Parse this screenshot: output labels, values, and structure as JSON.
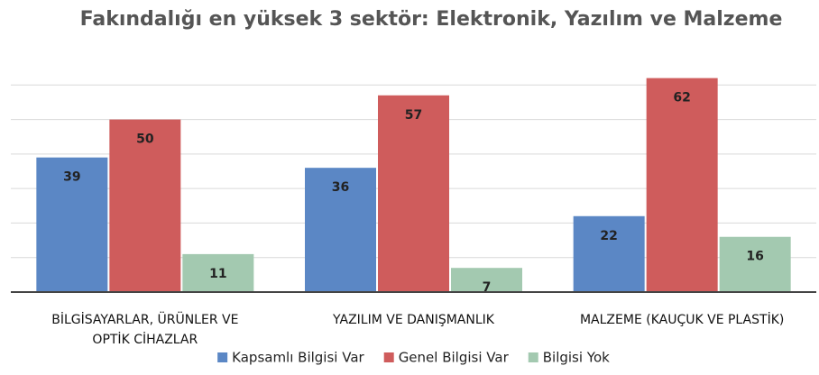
{
  "chart_data": {
    "type": "bar",
    "title": "Fakındalığı en yüksek 3 sektör: Elektronik, Yazılım ve Malzeme",
    "categories": [
      "BİLGİSAYARLAR, ÜRÜNLER VE OPTİK CİHAZLAR",
      "YAZILIM VE DANIŞMANLIK",
      "MALZEME (KAUÇUK VE PLASTİK)"
    ],
    "series": [
      {
        "name": "Kapsamlı Bilgisi Var",
        "color": "#5b87c5",
        "values": [
          39,
          36,
          22
        ]
      },
      {
        "name": "Genel Bilgisi Var",
        "color": "#cf5c5c",
        "values": [
          50,
          57,
          62
        ]
      },
      {
        "name": "Bilgisi Yok",
        "color": "#a3c9b0",
        "values": [
          11,
          7,
          16
        ]
      }
    ],
    "ylim": [
      0,
      70
    ],
    "yticks": [
      0,
      10,
      20,
      30,
      40,
      50,
      60
    ],
    "grid": true,
    "legend": "bottom"
  }
}
